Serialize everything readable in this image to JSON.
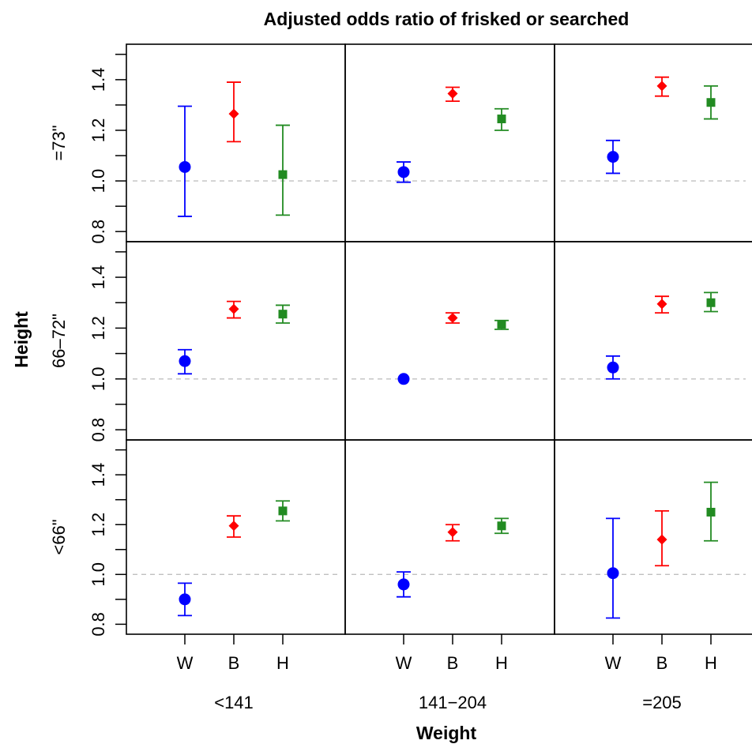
{
  "chart_data": {
    "type": "scatter",
    "title": "Adjusted odds ratio of frisked or searched",
    "xlabel": "Weight",
    "ylabel": "Height",
    "ylim": [
      0.76,
      1.54
    ],
    "yticks": [
      0.8,
      1.0,
      1.2,
      1.4
    ],
    "ytick_labels": [
      "0.8",
      "1.0",
      "1.2",
      "1.4"
    ],
    "reference_line": 1.0,
    "categories": [
      "W",
      "B",
      "H"
    ],
    "category_colors": [
      "#0000ff",
      "#ff0000",
      "#228b22"
    ],
    "category_markers": [
      "circle",
      "diamond",
      "square"
    ],
    "rows": [
      "=73\"",
      "66–72\"",
      "<66\""
    ],
    "columns": [
      "<141",
      "141−204",
      "=205"
    ],
    "panels": [
      {
        "row": "=73\"",
        "column": "<141",
        "points": [
          {
            "category": "W",
            "value": 1.055,
            "lower": 0.86,
            "upper": 1.295
          },
          {
            "category": "B",
            "value": 1.265,
            "lower": 1.155,
            "upper": 1.39
          },
          {
            "category": "H",
            "value": 1.025,
            "lower": 0.865,
            "upper": 1.22
          }
        ]
      },
      {
        "row": "=73\"",
        "column": "141−204",
        "points": [
          {
            "category": "W",
            "value": 1.035,
            "lower": 0.995,
            "upper": 1.075
          },
          {
            "category": "B",
            "value": 1.345,
            "lower": 1.315,
            "upper": 1.37
          },
          {
            "category": "H",
            "value": 1.245,
            "lower": 1.2,
            "upper": 1.285
          }
        ]
      },
      {
        "row": "=73\"",
        "column": "=205",
        "points": [
          {
            "category": "W",
            "value": 1.095,
            "lower": 1.03,
            "upper": 1.16
          },
          {
            "category": "B",
            "value": 1.375,
            "lower": 1.335,
            "upper": 1.41
          },
          {
            "category": "H",
            "value": 1.31,
            "lower": 1.245,
            "upper": 1.375
          }
        ]
      },
      {
        "row": "66–72\"",
        "column": "<141",
        "points": [
          {
            "category": "W",
            "value": 1.07,
            "lower": 1.02,
            "upper": 1.115
          },
          {
            "category": "B",
            "value": 1.275,
            "lower": 1.24,
            "upper": 1.305
          },
          {
            "category": "H",
            "value": 1.255,
            "lower": 1.22,
            "upper": 1.29
          }
        ]
      },
      {
        "row": "66–72\"",
        "column": "141−204",
        "points": [
          {
            "category": "W",
            "value": 1.0,
            "lower": 1.0,
            "upper": 1.0
          },
          {
            "category": "B",
            "value": 1.24,
            "lower": 1.22,
            "upper": 1.26
          },
          {
            "category": "H",
            "value": 1.215,
            "lower": 1.195,
            "upper": 1.23
          }
        ]
      },
      {
        "row": "66–72\"",
        "column": "=205",
        "points": [
          {
            "category": "W",
            "value": 1.045,
            "lower": 1.0,
            "upper": 1.09
          },
          {
            "category": "B",
            "value": 1.295,
            "lower": 1.26,
            "upper": 1.325
          },
          {
            "category": "H",
            "value": 1.3,
            "lower": 1.265,
            "upper": 1.34
          }
        ]
      },
      {
        "row": "<66\"",
        "column": "<141",
        "points": [
          {
            "category": "W",
            "value": 0.9,
            "lower": 0.835,
            "upper": 0.965
          },
          {
            "category": "B",
            "value": 1.195,
            "lower": 1.15,
            "upper": 1.235
          },
          {
            "category": "H",
            "value": 1.255,
            "lower": 1.215,
            "upper": 1.295
          }
        ]
      },
      {
        "row": "<66\"",
        "column": "141−204",
        "points": [
          {
            "category": "W",
            "value": 0.96,
            "lower": 0.91,
            "upper": 1.01
          },
          {
            "category": "B",
            "value": 1.17,
            "lower": 1.135,
            "upper": 1.2
          },
          {
            "category": "H",
            "value": 1.195,
            "lower": 1.165,
            "upper": 1.225
          }
        ]
      },
      {
        "row": "<66\"",
        "column": "=205",
        "points": [
          {
            "category": "W",
            "value": 1.005,
            "lower": 0.825,
            "upper": 1.225
          },
          {
            "category": "B",
            "value": 1.14,
            "lower": 1.035,
            "upper": 1.255
          },
          {
            "category": "H",
            "value": 1.25,
            "lower": 1.135,
            "upper": 1.37
          }
        ]
      }
    ],
    "grid": false,
    "reference_line_color": "#c0c0c0"
  }
}
